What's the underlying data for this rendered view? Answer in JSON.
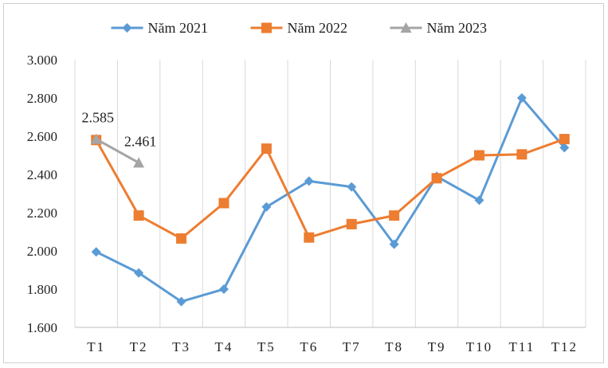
{
  "chart_data": {
    "type": "line",
    "title": "",
    "xlabel": "",
    "ylabel": "",
    "categories": [
      "T1",
      "T2",
      "T3",
      "T4",
      "T5",
      "T6",
      "T7",
      "T8",
      "T9",
      "T10",
      "T11",
      "T12"
    ],
    "ylim": [
      1600,
      3000
    ],
    "yticks": [
      {
        "value": 1600,
        "label": "1.600"
      },
      {
        "value": 1800,
        "label": "1.800"
      },
      {
        "value": 2000,
        "label": "2.000"
      },
      {
        "value": 2200,
        "label": "2.200"
      },
      {
        "value": 2400,
        "label": "2.400"
      },
      {
        "value": 2600,
        "label": "2.600"
      },
      {
        "value": 2800,
        "label": "2.800"
      },
      {
        "value": 3000,
        "label": "3.000"
      }
    ],
    "grid": "vertical",
    "legend_position": "top",
    "series": [
      {
        "name": "Năm 2021",
        "color": "#5b9bd5",
        "marker": "diamond",
        "values": [
          1995,
          1885,
          1735,
          1800,
          2230,
          2365,
          2335,
          2035,
          2390,
          2265,
          2800,
          2540
        ]
      },
      {
        "name": "Năm 2022",
        "color": "#ed7d31",
        "marker": "square",
        "values": [
          2580,
          2185,
          2065,
          2250,
          2535,
          2070,
          2140,
          2185,
          2380,
          2500,
          2505,
          2585
        ]
      },
      {
        "name": "Năm 2023",
        "color": "#a5a5a5",
        "marker": "triangle",
        "values": [
          2585,
          2461,
          null,
          null,
          null,
          null,
          null,
          null,
          null,
          null,
          null,
          null
        ],
        "data_labels": [
          "2.585",
          "2.461"
        ]
      }
    ]
  }
}
